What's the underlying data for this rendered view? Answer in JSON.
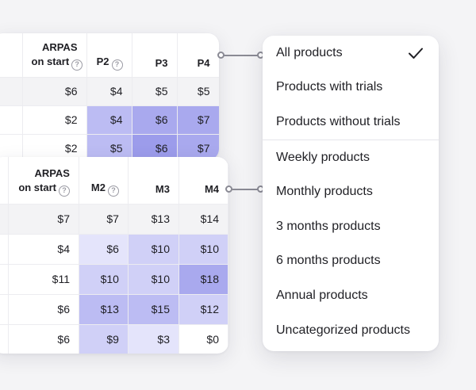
{
  "colors": {
    "cell_lightest": "#e4e4fb",
    "cell_light": "#d0d0f7",
    "cell_medium": "#bcbcf3",
    "cell_strong": "#a9a9ee",
    "cell_strongest": "#9c9ceb",
    "total_row": "#f3f3f5",
    "connector": "#8a8a94"
  },
  "table_top": {
    "headers": {
      "arpas_line1": "ARPAS",
      "arpas_line2": "on start",
      "help_glyph": "?",
      "p2": "P2",
      "p3": "P3",
      "p4": "P4"
    },
    "rows": [
      {
        "arpas": "$6",
        "p2": "$4",
        "p3": "$5",
        "p4": "$5",
        "shade": [
          "none",
          "none",
          "none"
        ]
      },
      {
        "arpas": "$2",
        "p2": "$4",
        "p3": "$6",
        "p4": "$7",
        "shade": [
          "cell_medium",
          "cell_strong",
          "cell_strong"
        ]
      },
      {
        "arpas": "$2",
        "p2": "$5",
        "p3": "$6",
        "p4": "$7",
        "shade": [
          "cell_medium",
          "cell_strongest",
          "cell_strong"
        ]
      }
    ]
  },
  "table_bottom": {
    "headers": {
      "arpas_line1": "ARPAS",
      "arpas_line2": "on start",
      "help_glyph": "?",
      "m2": "M2",
      "m3": "M3",
      "m4": "M4"
    },
    "rows": [
      {
        "arpas": "$7",
        "m2": "$7",
        "m3": "$13",
        "m4": "$14",
        "shade": [
          "none",
          "none",
          "none"
        ]
      },
      {
        "arpas": "$4",
        "m2": "$6",
        "m3": "$10",
        "m4": "$10",
        "shade": [
          "cell_lightest",
          "cell_light",
          "cell_light"
        ]
      },
      {
        "arpas": "$11",
        "m2": "$10",
        "m3": "$10",
        "m4": "$18",
        "shade": [
          "cell_light",
          "cell_light",
          "cell_strong"
        ]
      },
      {
        "arpas": "$6",
        "m2": "$13",
        "m3": "$15",
        "m4": "$12",
        "shade": [
          "cell_medium",
          "cell_medium",
          "cell_light"
        ]
      },
      {
        "arpas": "$6",
        "m2": "$9",
        "m3": "$3",
        "m4": "$0",
        "shade": [
          "cell_light",
          "cell_lightest",
          "none"
        ]
      }
    ]
  },
  "menu": {
    "selected_icon": "check-icon",
    "group1": [
      "All products",
      "Products with trials",
      "Products without trials"
    ],
    "group2": [
      "Weekly products",
      "Monthly products",
      "3 months products",
      "6 months products",
      "Annual products",
      "Uncategorized products"
    ]
  }
}
